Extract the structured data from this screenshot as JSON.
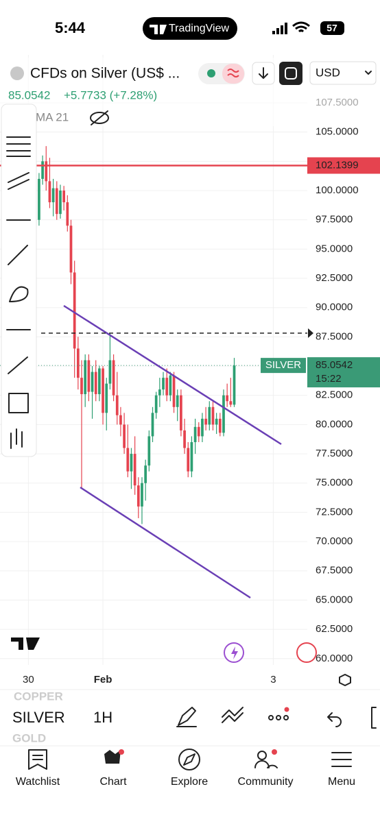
{
  "status_bar": {
    "time": "5:44",
    "app": "TradingView",
    "battery": "57"
  },
  "header": {
    "symbol": "CFDs on Silver (US$ ...",
    "price": "85.0542",
    "change": "+5.7733 (+7.28%)",
    "indicator": "MA 21",
    "currency": "USD"
  },
  "chart_data": {
    "type": "candlestick",
    "x": [
      0,
      1,
      2,
      3,
      4,
      5,
      6,
      7,
      8,
      9,
      10,
      11,
      12,
      13,
      14,
      15,
      16,
      17,
      18,
      19,
      20,
      21,
      22,
      23,
      24,
      25,
      26,
      27,
      28,
      29,
      30,
      31,
      32,
      33,
      34,
      35,
      36,
      37,
      38,
      39,
      40,
      41,
      42,
      43,
      44,
      45,
      46,
      47,
      48,
      49,
      50,
      51,
      52,
      53,
      54,
      55
    ],
    "series": [
      {
        "name": "open",
        "values": [
          97.5,
          101,
          102.5,
          100.8,
          99,
          100.2,
          98,
          100,
          99,
          97,
          93,
          86.5,
          84,
          82.6,
          85.5,
          82.8,
          84.5,
          82.6,
          84.8,
          81,
          83.5,
          85.5,
          82.5,
          80.8,
          80,
          78,
          76,
          77.5,
          74.8,
          73,
          75,
          76.5,
          79,
          81,
          82.5,
          83,
          84,
          82.5,
          84.2,
          81.5,
          82.5,
          79.5,
          78,
          76,
          78.5,
          79.8,
          79,
          80.5,
          80,
          81.5,
          80,
          80.5,
          79.3,
          82.5,
          82,
          81.7
        ]
      },
      {
        "name": "high",
        "values": [
          101.5,
          103,
          103.8,
          102.8,
          101,
          100.8,
          100.5,
          100.4,
          99.6,
          97.5,
          94,
          87.5,
          85.5,
          86,
          86,
          85,
          85.5,
          85,
          85,
          84,
          87.8,
          86,
          84.5,
          81.5,
          81,
          80,
          78,
          79,
          75.5,
          75.5,
          77,
          79.5,
          81.5,
          82.8,
          84,
          84.5,
          84.8,
          84.5,
          84.5,
          83,
          83,
          80.5,
          78.5,
          79,
          80.5,
          80.2,
          81,
          81.5,
          82,
          82,
          81,
          81,
          83,
          83.5,
          84,
          85.7
        ]
      },
      {
        "name": "low",
        "values": [
          97,
          100.5,
          100,
          98.5,
          97.8,
          97.5,
          97.6,
          98.3,
          96.5,
          92,
          84,
          83,
          74.6,
          81.5,
          82,
          80.5,
          82,
          82,
          80,
          79.5,
          83,
          82,
          80,
          79,
          77.5,
          75.5,
          74.5,
          74,
          72,
          71.5,
          73.5,
          76,
          78.5,
          80.5,
          81.5,
          82.5,
          82,
          82,
          81,
          80.3,
          79,
          77.5,
          75.5,
          75.5,
          77.5,
          78.5,
          78.5,
          79.5,
          79.5,
          79.5,
          79.2,
          79,
          79,
          81.5,
          81.5,
          81.5
        ]
      },
      {
        "name": "close",
        "values": [
          101,
          102.5,
          100.8,
          99,
          100.2,
          98,
          100,
          99,
          97,
          93,
          86.5,
          84,
          82.6,
          85.5,
          82.8,
          84.5,
          82.6,
          84.8,
          81,
          83.5,
          85.5,
          82.5,
          80.8,
          80,
          78,
          76,
          77.5,
          74.8,
          73,
          75,
          76.5,
          79,
          81,
          82.5,
          83,
          84,
          82.5,
          84.2,
          81.5,
          82.5,
          79.5,
          78,
          76,
          78.5,
          79.8,
          79,
          80.5,
          80,
          81.5,
          80,
          80.5,
          79.3,
          82.5,
          82,
          81.7,
          85.05
        ]
      }
    ],
    "up_color": "#2d9f72",
    "down_color": "#e5434f",
    "xlim": [
      -11,
      75
    ],
    "xticks": [
      {
        "value": -3,
        "label": "30"
      },
      {
        "value": 18,
        "label": "Feb"
      },
      {
        "value": 66,
        "label": "3"
      }
    ],
    "ylim": [
      59.46,
      111.6
    ],
    "yticks": [
      {
        "value": 107.5,
        "label": "107.5000"
      },
      {
        "value": 105,
        "label": "105.0000"
      },
      {
        "value": 102.5,
        "label": "102.5000"
      },
      {
        "value": 100,
        "label": "100.0000"
      },
      {
        "value": 97.5,
        "label": "97.5000"
      },
      {
        "value": 95,
        "label": "95.0000"
      },
      {
        "value": 92.5,
        "label": "92.5000"
      },
      {
        "value": 90,
        "label": "90.0000"
      },
      {
        "value": 87.5,
        "label": "87.5000"
      },
      {
        "value": 85,
        "label": "85.0000"
      },
      {
        "value": 82.5,
        "label": "82.5000"
      },
      {
        "value": 80,
        "label": "80.0000"
      },
      {
        "value": 77.5,
        "label": "77.5000"
      },
      {
        "value": 75,
        "label": "75.0000"
      },
      {
        "value": 72.5,
        "label": "72.5000"
      },
      {
        "value": 70,
        "label": "70.0000"
      },
      {
        "value": 67.5,
        "label": "67.5000"
      },
      {
        "value": 65,
        "label": "65.0000"
      },
      {
        "value": 62.5,
        "label": "62.5000"
      },
      {
        "value": 60,
        "label": "60.0000"
      }
    ],
    "grid": true,
    "alert_line": {
      "value": 102.1399,
      "label": "102.1399",
      "color": "#e5434f"
    },
    "last_price": {
      "value": 85.0542,
      "label": "85.0542",
      "name": "SILVER",
      "countdown": "15:22",
      "color": "#3a9a76"
    }
  },
  "toolbar": {
    "symbol": "SILVER",
    "interval": "1H",
    "prev_symbol": "COPPER",
    "next_symbol": "GOLD"
  },
  "nav": [
    "Watchlist",
    "Chart",
    "Explore",
    "Community",
    "Menu"
  ]
}
